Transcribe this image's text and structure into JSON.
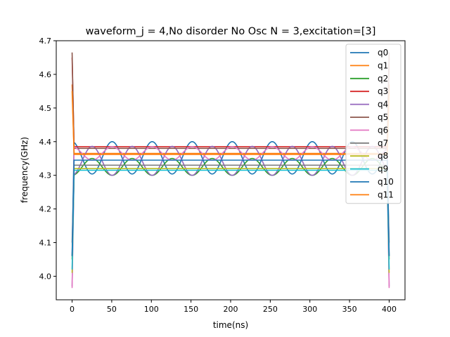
{
  "chart_data": {
    "type": "line",
    "title": "waveform_j = 4,No disorder No Osc N =  3,excitation=[3]",
    "xlabel": "time(ns)",
    "ylabel": "frequency(GHz)",
    "xlim": [
      -20,
      420
    ],
    "ylim": [
      3.93,
      4.7
    ],
    "xticks": [
      0,
      50,
      100,
      150,
      200,
      250,
      300,
      350,
      400
    ],
    "yticks": [
      4.0,
      4.1,
      4.2,
      4.3,
      4.4,
      4.5,
      4.6,
      4.7
    ],
    "xtick_labels": [
      "0",
      "50",
      "100",
      "150",
      "200",
      "250",
      "300",
      "350",
      "400"
    ],
    "ytick_labels": [
      "4.0",
      "4.1",
      "4.2",
      "4.3",
      "4.4",
      "4.5",
      "4.6",
      "4.7"
    ],
    "grid": false,
    "legend_position": "top-right",
    "period_ns": 50.5,
    "series": [
      {
        "name": "q0",
        "color": "#1f77b4",
        "center": 4.352,
        "amplitude": 0.048,
        "phase": 0.0,
        "start": 4.06,
        "spike": 4.06
      },
      {
        "name": "q1",
        "color": "#ff7f0e",
        "center": 4.365,
        "amplitude": 0.0,
        "phase": 0.0,
        "start": 4.57,
        "spike": 4.57
      },
      {
        "name": "q2",
        "color": "#2ca02c",
        "center": 4.325,
        "amplitude": 0.025,
        "phase": 3.14,
        "start": 4.05,
        "spike": 4.05
      },
      {
        "name": "q3",
        "color": "#d62728",
        "center": 4.385,
        "amplitude": 0.0,
        "phase": 0.0,
        "start": 4.65,
        "spike": 4.65
      },
      {
        "name": "q4",
        "color": "#9467bd",
        "center": 4.343,
        "amplitude": 0.043,
        "phase": 3.14,
        "start": 3.97,
        "spike": 3.97
      },
      {
        "name": "q5",
        "color": "#8c564b",
        "center": 4.38,
        "amplitude": 0.0,
        "phase": 0.0,
        "start": 4.665,
        "spike": 4.665
      },
      {
        "name": "q6",
        "color": "#e377c2",
        "center": 4.365,
        "amplitude": 0.02,
        "phase": 0.0,
        "start": 3.965,
        "spike": 3.965
      },
      {
        "name": "q7",
        "color": "#7f7f7f",
        "center": 4.33,
        "amplitude": 0.0,
        "phase": 0.0,
        "start": 4.1,
        "spike": 4.1
      },
      {
        "name": "q8",
        "color": "#bcbd22",
        "center": 4.32,
        "amplitude": 0.0,
        "phase": 0.0,
        "start": 4.01,
        "spike": 4.01
      },
      {
        "name": "q9",
        "color": "#17becf",
        "center": 4.315,
        "amplitude": 0.0,
        "phase": 0.0,
        "start": 4.02,
        "spike": 4.02
      },
      {
        "name": "q10",
        "color": "#1f77b4",
        "center": 4.345,
        "amplitude": 0.0,
        "phase": 0.0,
        "start": 4.06,
        "spike": 4.06
      },
      {
        "name": "q11",
        "color": "#ff7f0e",
        "center": 4.362,
        "amplitude": 0.0,
        "phase": 0.0,
        "start": 4.55,
        "spike": 4.55
      }
    ]
  }
}
